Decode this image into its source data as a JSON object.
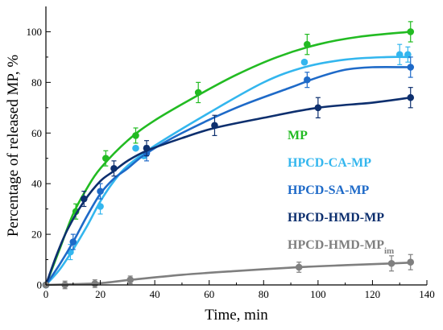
{
  "chart_data": {
    "type": "line",
    "xlabel": "Time, min",
    "ylabel": "Percentage of released MP, %",
    "xlim": [
      0,
      140
    ],
    "ylim": [
      0,
      110
    ],
    "xticks": [
      "0",
      "20",
      "40",
      "60",
      "80",
      "100",
      "120",
      "140"
    ],
    "yticks": [
      "0",
      "20",
      "40",
      "60",
      "80",
      "100"
    ],
    "legend_position": "inside-right",
    "series": [
      {
        "name": "MP",
        "color": "#22bb22",
        "points": [
          [
            0,
            0
          ],
          [
            11,
            29
          ],
          [
            22,
            50
          ],
          [
            33,
            59
          ],
          [
            56,
            76
          ],
          [
            96,
            95
          ],
          [
            134,
            100
          ]
        ],
        "errors": [
          0,
          3,
          3,
          3,
          4,
          4,
          4
        ],
        "curve": [
          [
            0,
            0
          ],
          [
            5,
            14
          ],
          [
            10,
            28
          ],
          [
            15,
            38
          ],
          [
            20,
            46
          ],
          [
            30,
            57
          ],
          [
            40,
            65
          ],
          [
            56,
            75
          ],
          [
            70,
            83
          ],
          [
            85,
            90
          ],
          [
            100,
            95
          ],
          [
            115,
            98
          ],
          [
            134,
            100
          ]
        ]
      },
      {
        "name": "HPCD-CA-MP",
        "color": "#33b6ee",
        "points": [
          [
            0,
            0
          ],
          [
            9,
            13
          ],
          [
            20,
            31
          ],
          [
            33,
            54
          ],
          [
            36,
            51
          ],
          [
            95,
            88
          ],
          [
            130,
            91
          ],
          [
            133,
            91
          ]
        ],
        "errors": [
          0,
          3,
          3,
          0,
          0,
          0,
          4,
          3
        ],
        "curve": [
          [
            0,
            0
          ],
          [
            5,
            6
          ],
          [
            10,
            14
          ],
          [
            15,
            23
          ],
          [
            20,
            33
          ],
          [
            25,
            41
          ],
          [
            30,
            47
          ],
          [
            40,
            55
          ],
          [
            60,
            68
          ],
          [
            80,
            80
          ],
          [
            95,
            86
          ],
          [
            110,
            89
          ],
          [
            125,
            90
          ],
          [
            134,
            90
          ]
        ]
      },
      {
        "name": "HPCD-SA-MP",
        "color": "#1e6ac8",
        "points": [
          [
            0,
            0
          ],
          [
            10,
            17
          ],
          [
            20,
            37
          ],
          [
            37,
            52
          ],
          [
            96,
            81
          ],
          [
            134,
            86
          ]
        ],
        "errors": [
          0,
          3,
          3,
          3,
          3,
          4
        ],
        "curve": [
          [
            0,
            0
          ],
          [
            5,
            8
          ],
          [
            10,
            17
          ],
          [
            15,
            27
          ],
          [
            20,
            36
          ],
          [
            25,
            42
          ],
          [
            30,
            46
          ],
          [
            37,
            52
          ],
          [
            50,
            60
          ],
          [
            70,
            70
          ],
          [
            90,
            78
          ],
          [
            100,
            82
          ],
          [
            110,
            85
          ],
          [
            120,
            86
          ],
          [
            134,
            86
          ]
        ]
      },
      {
        "name": "HPCD-HMD-MP",
        "color": "#0d2f6e",
        "points": [
          [
            0,
            0
          ],
          [
            14,
            34
          ],
          [
            25,
            46
          ],
          [
            37,
            54
          ],
          [
            62,
            63
          ],
          [
            100,
            70
          ],
          [
            134,
            74
          ]
        ],
        "errors": [
          0,
          3,
          3,
          3,
          4,
          4,
          4
        ],
        "curve": [
          [
            0,
            0
          ],
          [
            4,
            12
          ],
          [
            8,
            22
          ],
          [
            14,
            33
          ],
          [
            20,
            41
          ],
          [
            25,
            45
          ],
          [
            30,
            49
          ],
          [
            37,
            53
          ],
          [
            50,
            58
          ],
          [
            62,
            62
          ],
          [
            80,
            66
          ],
          [
            100,
            70
          ],
          [
            120,
            72
          ],
          [
            134,
            74
          ]
        ]
      },
      {
        "name": "HPCD-HMD-MP",
        "name_sub": "im",
        "color": "#7f7f7f",
        "points": [
          [
            0,
            0
          ],
          [
            7,
            0
          ],
          [
            18,
            0.5
          ],
          [
            31,
            2
          ],
          [
            93,
            7
          ],
          [
            127,
            8.5
          ],
          [
            134,
            9
          ]
        ],
        "errors": [
          0,
          1.5,
          1.5,
          1.5,
          2,
          3,
          3
        ],
        "curve": [
          [
            0,
            0
          ],
          [
            10,
            0.3
          ],
          [
            20,
            0.7
          ],
          [
            31,
            2
          ],
          [
            50,
            4
          ],
          [
            70,
            5.5
          ],
          [
            93,
            7
          ],
          [
            110,
            7.8
          ],
          [
            127,
            8.5
          ],
          [
            134,
            8.8
          ]
        ]
      }
    ]
  }
}
